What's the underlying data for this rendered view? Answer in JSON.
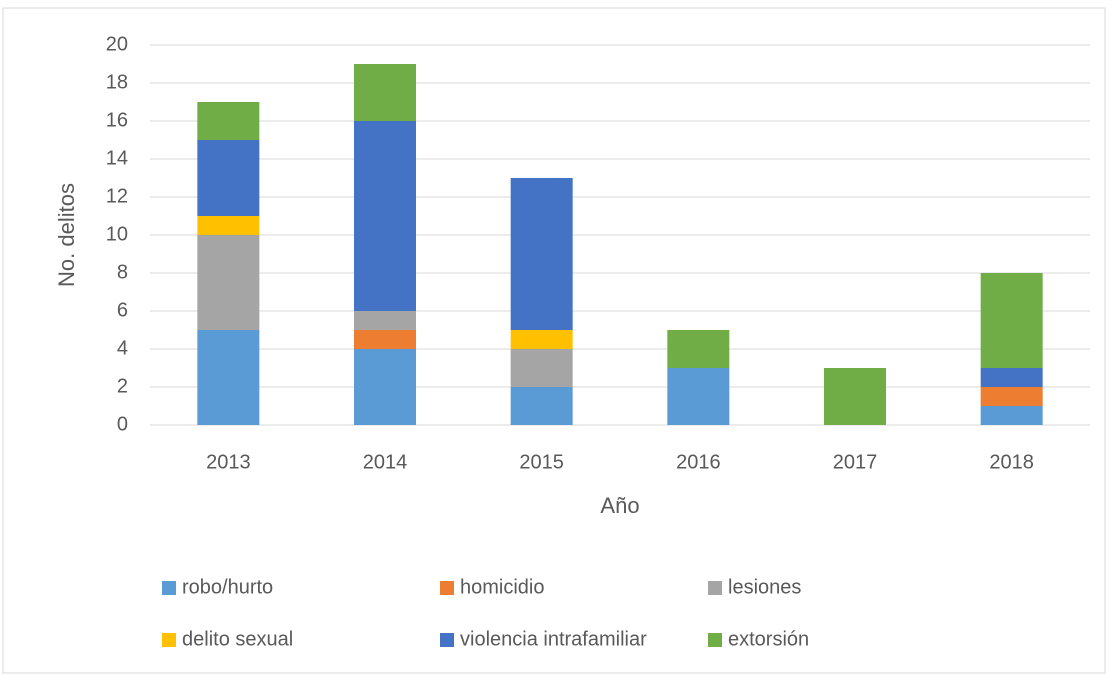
{
  "chart_data": {
    "type": "stacked-bar",
    "categories": [
      "2013",
      "2014",
      "2015",
      "2016",
      "2017",
      "2018"
    ],
    "series": [
      {
        "name": "robo/hurto",
        "color": "#5b9bd5",
        "values": [
          5,
          4,
          2,
          3,
          0,
          1
        ]
      },
      {
        "name": "homicidio",
        "color": "#ed7d31",
        "values": [
          0,
          1,
          0,
          0,
          0,
          1
        ]
      },
      {
        "name": "lesiones",
        "color": "#a5a5a5",
        "values": [
          5,
          1,
          2,
          0,
          0,
          0
        ]
      },
      {
        "name": "delito sexual",
        "color": "#ffc000",
        "values": [
          1,
          0,
          1,
          0,
          0,
          0
        ]
      },
      {
        "name": "violencia intrafamiliar",
        "color": "#4472c4",
        "values": [
          4,
          10,
          8,
          0,
          0,
          1
        ]
      },
      {
        "name": "extorsión",
        "color": "#70ad47",
        "values": [
          2,
          3,
          0,
          2,
          3,
          5
        ]
      }
    ],
    "x_label": "Año",
    "y_label": "No. delitos",
    "ylim": [
      0,
      20
    ],
    "yticks": [
      0,
      2,
      4,
      6,
      8,
      10,
      12,
      14,
      16,
      18,
      20
    ],
    "grid": true,
    "legend": "bottom"
  }
}
